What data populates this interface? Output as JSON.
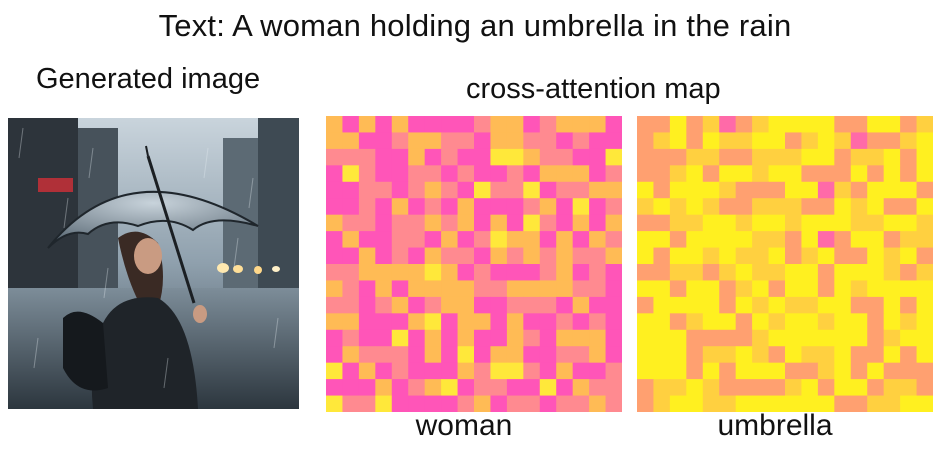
{
  "title": "Text: A woman holding an umbrella in the rain",
  "generated_label": "Generated image",
  "attention_label": "cross-attention map",
  "maps": [
    {
      "token": "woman",
      "palette": [
        "#ff55b8",
        "#ff8a90",
        "#ffbb55",
        "#ffe83a"
      ],
      "bias": 0.35
    },
    {
      "token": "umbrella",
      "palette": [
        "#ff6aa8",
        "#ffa070",
        "#ffd040",
        "#fff020"
      ],
      "bias": 0.68
    }
  ],
  "colors": {
    "magenta": "#ff55b8",
    "orange": "#ffa070",
    "yellow": "#fff020"
  }
}
